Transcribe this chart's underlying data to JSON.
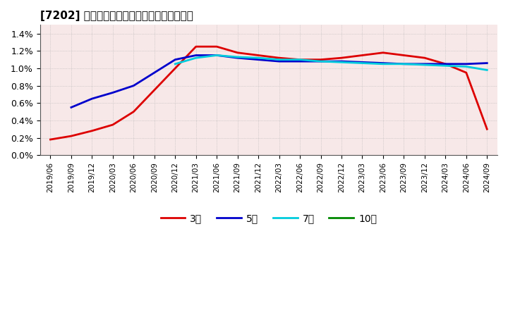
{
  "title": "[7202] 当期純利益マージンの標準偶差の推移",
  "background_color": "#f7e8e8",
  "grid_color": "#b0b0b0",
  "line_3yr_color": "#dd0000",
  "line_5yr_color": "#0000cc",
  "line_7yr_color": "#00ccdd",
  "line_10yr_color": "#008800",
  "legend_labels": [
    "3年",
    "5年",
    "7年",
    "10年"
  ],
  "dates": [
    "2019/06",
    "2019/09",
    "2019/12",
    "2020/03",
    "2020/06",
    "2020/09",
    "2020/12",
    "2021/03",
    "2021/06",
    "2021/09",
    "2021/12",
    "2022/03",
    "2022/06",
    "2022/09",
    "2022/12",
    "2023/03",
    "2023/06",
    "2023/09",
    "2023/12",
    "2024/03",
    "2024/06",
    "2024/09"
  ],
  "values_3yr": [
    0.0018,
    0.0022,
    0.0028,
    0.0035,
    0.005,
    0.0075,
    0.01,
    0.0125,
    0.0125,
    0.0118,
    0.0115,
    0.0112,
    0.011,
    0.011,
    0.0112,
    0.0115,
    0.0118,
    0.0115,
    0.0112,
    0.0105,
    0.0095,
    0.003
  ],
  "values_5yr": [
    null,
    0.0055,
    0.0065,
    0.0072,
    0.008,
    0.0095,
    0.011,
    0.0115,
    0.0115,
    0.0112,
    0.011,
    0.0108,
    0.0108,
    0.0108,
    0.0108,
    0.0107,
    0.0106,
    0.0105,
    0.0105,
    0.0105,
    0.0105,
    0.0106
  ],
  "values_7yr": [
    null,
    null,
    null,
    null,
    null,
    null,
    0.0105,
    0.0112,
    0.0115,
    0.0113,
    0.0112,
    0.011,
    0.011,
    0.0108,
    0.0107,
    0.0106,
    0.0105,
    0.0105,
    0.0104,
    0.0103,
    0.0102,
    0.0098
  ],
  "values_10yr": [
    null,
    null,
    null,
    null,
    null,
    null,
    null,
    null,
    null,
    null,
    null,
    null,
    null,
    null,
    null,
    null,
    null,
    null,
    null,
    null,
    null,
    null
  ],
  "ylim": [
    0.0,
    0.015
  ],
  "yticks": [
    0.0,
    0.002,
    0.004,
    0.006,
    0.008,
    0.01,
    0.012,
    0.014
  ],
  "yticklabels": [
    "0.0%",
    "0.2%",
    "0.4%",
    "0.6%",
    "0.8%",
    "1.0%",
    "1.2%",
    "1.4%"
  ]
}
